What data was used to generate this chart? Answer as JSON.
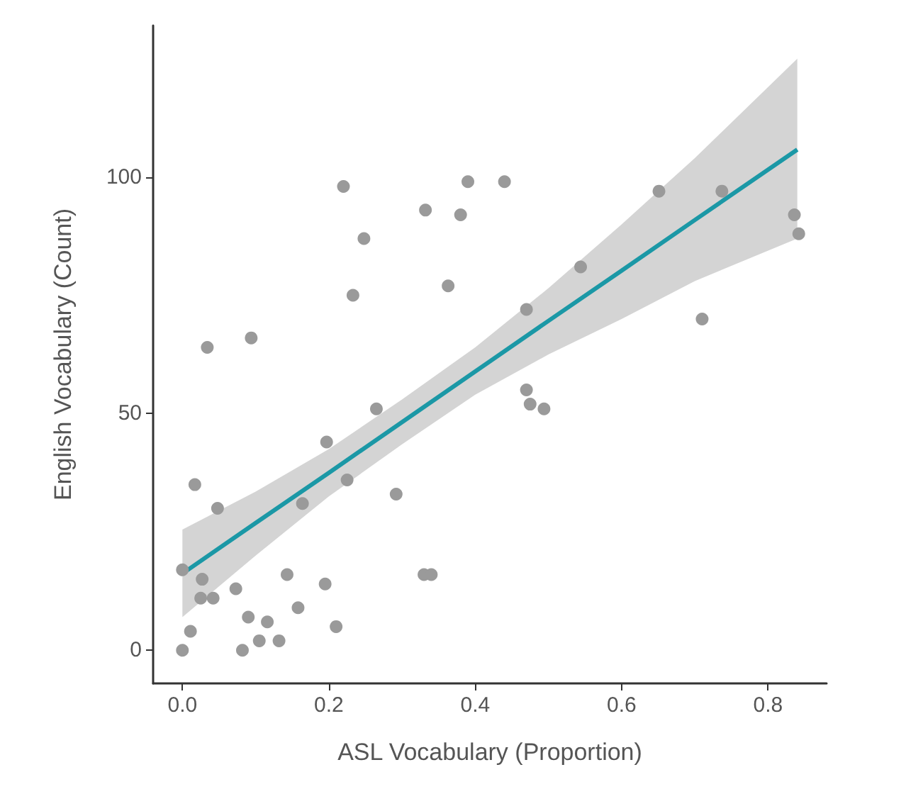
{
  "chart_data": {
    "type": "scatter",
    "xlabel": "ASL Vocabulary (Proportion)",
    "ylabel": "English Vocabulary (Count)",
    "xlim": [
      -0.04,
      0.88
    ],
    "ylim": [
      -7,
      132
    ],
    "xticks": [
      {
        "value": 0,
        "label": "0.0"
      },
      0.2,
      0.4,
      0.6,
      0.8
    ],
    "yticks": [
      0,
      50,
      100
    ],
    "grid": false,
    "series": [
      {
        "color": "#9a9a9a",
        "marker": "circle",
        "x": [
          0,
          0.011,
          0,
          0.017,
          0.048,
          0.027,
          0.025,
          0.042,
          0.073,
          0.09,
          0.116,
          0.082,
          0.105,
          0.132,
          0.143,
          0.158,
          0.195,
          0.21,
          0.197,
          0.225,
          0.265,
          0.292,
          0.33,
          0.34,
          0.164,
          0.22,
          0.39,
          0.44,
          0.332,
          0.38,
          0.248,
          0.233,
          0.363,
          0.034,
          0.094,
          0.651,
          0.737,
          0.836,
          0.842,
          0.544,
          0.47,
          0.71,
          0.47,
          0.475,
          0.494
        ],
        "values": [
          0,
          4,
          17,
          35,
          30,
          15,
          11,
          11,
          13,
          7,
          6,
          0,
          2,
          2,
          16,
          9,
          14,
          5,
          44,
          36,
          51,
          33,
          16,
          16,
          31,
          98,
          99,
          99,
          93,
          92,
          87,
          75,
          77,
          64,
          66,
          97,
          97,
          92,
          88,
          81,
          72,
          70,
          55,
          52,
          51
        ]
      },
      {
        "type": "line",
        "color": "#1b98a6",
        "line_style": "solid",
        "x": [
          0,
          0.1,
          0.2,
          0.3,
          0.4,
          0.5,
          0.6,
          0.7,
          0.84
        ],
        "values": [
          16.2,
          26.9,
          37.5,
          48.2,
          58.9,
          69.6,
          80.2,
          90.9,
          105.8
        ],
        "lower": [
          7,
          20,
          32.5,
          43.5,
          54,
          62.5,
          70,
          78,
          87
        ],
        "upper": [
          25.5,
          33.5,
          42.5,
          53,
          64,
          76.5,
          90,
          104,
          125
        ]
      }
    ]
  }
}
